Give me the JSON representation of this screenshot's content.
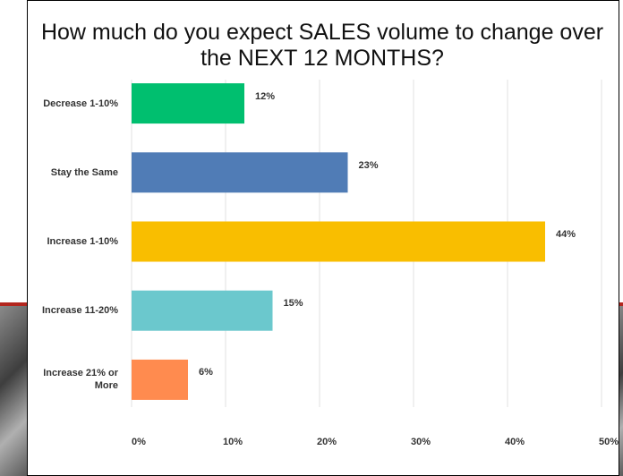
{
  "chart_data": {
    "type": "bar",
    "orientation": "horizontal",
    "title": "How much do you expect SALES volume to change over the NEXT 12 MONTHS?",
    "categories": [
      "Decrease 1-10%",
      "Stay the Same",
      "Increase 1-10%",
      "Increase 11-20%",
      "Increase 21% or More"
    ],
    "values": [
      12,
      23,
      44,
      15,
      6
    ],
    "value_labels": [
      "12%",
      "23%",
      "44%",
      "15%",
      "6%"
    ],
    "colors": [
      "#00bf6f",
      "#507cb6",
      "#f9be00",
      "#6bc8cd",
      "#ff8b4f"
    ],
    "xlim": [
      0,
      50
    ],
    "xticks": [
      {
        "value": 0,
        "label": "0%"
      },
      {
        "value": 10,
        "label": "10%"
      },
      {
        "value": 20,
        "label": "20%"
      },
      {
        "value": 30,
        "label": "30%"
      },
      {
        "value": 40,
        "label": "40%"
      },
      {
        "value": 50,
        "label": "50%"
      }
    ],
    "grid": true
  }
}
